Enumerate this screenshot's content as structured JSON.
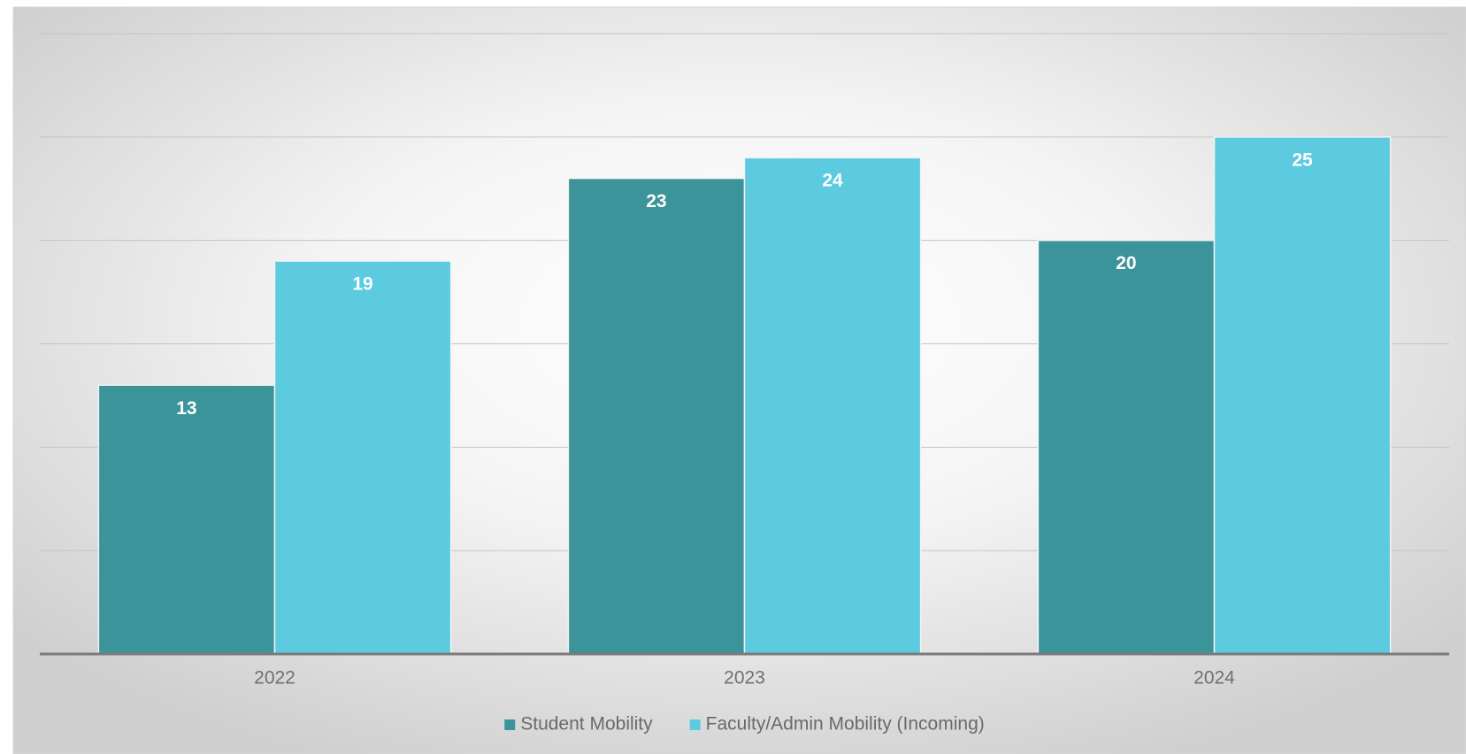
{
  "chart_data": {
    "type": "bar",
    "categories": [
      "2022",
      "2023",
      "2024"
    ],
    "series": [
      {
        "name": "Student Mobility",
        "color": "#3a9499",
        "values": [
          13,
          23,
          20
        ]
      },
      {
        "name": "Faculty/Admin Mobility (Incoming)",
        "color": "#5ccbe0",
        "values": [
          19,
          24,
          25
        ]
      }
    ],
    "ylim": [
      0,
      30
    ],
    "yticks": [
      0,
      5,
      10,
      15,
      20,
      25,
      30
    ],
    "grid": true,
    "legend": "bottom"
  }
}
